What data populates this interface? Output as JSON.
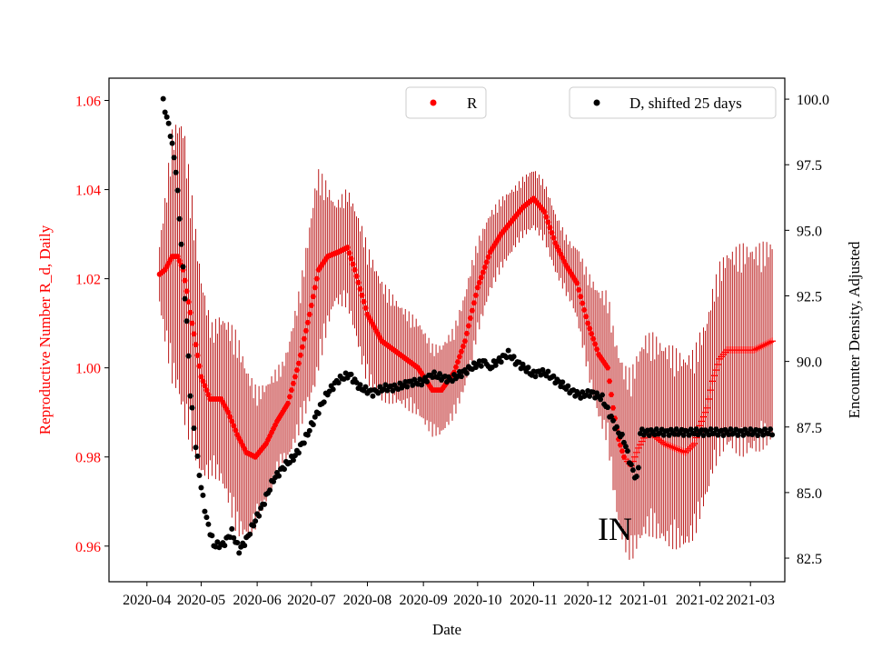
{
  "colors": {
    "r_series": "#ff0000",
    "r_errorbar": "#b30000",
    "d_series": "#000000",
    "axis": "#000000"
  },
  "chart_data": {
    "type": "scatter",
    "xlabel": "Date",
    "ylabel_left": "Reproductive Number R_d, Daily",
    "ylabel_right": "Encounter Density, Adjusted",
    "annotation": "IN",
    "x_tick_labels": [
      "2020-04",
      "2020-05",
      "2020-06",
      "2020-07",
      "2020-08",
      "2020-09",
      "2020-10",
      "2020-11",
      "2020-12",
      "2021-01",
      "2021-02",
      "2021-03"
    ],
    "x_ticks_day": [
      0,
      30,
      61,
      91,
      122,
      153,
      183,
      214,
      244,
      275,
      306,
      334
    ],
    "xlim_day": [
      -21,
      353
    ],
    "ylim_left": [
      0.952,
      1.065
    ],
    "yticks_left": [
      0.96,
      0.98,
      1.0,
      1.02,
      1.04,
      1.06
    ],
    "ytick_labels_left": [
      "0.96",
      "0.98",
      "1.00",
      "1.02",
      "1.04",
      "1.06"
    ],
    "ylim_right": [
      81.6,
      100.8
    ],
    "yticks_right": [
      82.5,
      85.0,
      87.5,
      90.0,
      92.5,
      95.0,
      97.5,
      100.0
    ],
    "ytick_labels_right": [
      "82.5",
      "85.0",
      "87.5",
      "90.0",
      "92.5",
      "95.0",
      "97.5",
      "100.0"
    ],
    "legend": [
      {
        "label": "R",
        "position": "top-center"
      },
      {
        "label": "D, shifted 25 days",
        "position": "top-right"
      }
    ],
    "series_R": {
      "name": "R",
      "day_range": [
        7,
        346
      ],
      "marker_circle_until_day": 264,
      "keypoints": [
        [
          7,
          1.021
        ],
        [
          10,
          1.022
        ],
        [
          14,
          1.025
        ],
        [
          17,
          1.025
        ],
        [
          20,
          1.022
        ],
        [
          25,
          1.01
        ],
        [
          30,
          0.998
        ],
        [
          35,
          0.993
        ],
        [
          41,
          0.993
        ],
        [
          45,
          0.99
        ],
        [
          50,
          0.985
        ],
        [
          55,
          0.981
        ],
        [
          60,
          0.98
        ],
        [
          66,
          0.983
        ],
        [
          72,
          0.988
        ],
        [
          78,
          0.992
        ],
        [
          84,
          1.001
        ],
        [
          90,
          1.012
        ],
        [
          95,
          1.022
        ],
        [
          100,
          1.025
        ],
        [
          106,
          1.026
        ],
        [
          111,
          1.027
        ],
        [
          115,
          1.022
        ],
        [
          122,
          1.012
        ],
        [
          130,
          1.006
        ],
        [
          140,
          1.003
        ],
        [
          150,
          1.0
        ],
        [
          158,
          0.995
        ],
        [
          163,
          0.995
        ],
        [
          170,
          0.999
        ],
        [
          176,
          1.006
        ],
        [
          183,
          1.018
        ],
        [
          190,
          1.026
        ],
        [
          196,
          1.03
        ],
        [
          202,
          1.033
        ],
        [
          208,
          1.036
        ],
        [
          214,
          1.038
        ],
        [
          220,
          1.035
        ],
        [
          226,
          1.028
        ],
        [
          232,
          1.023
        ],
        [
          238,
          1.019
        ],
        [
          244,
          1.01
        ],
        [
          250,
          1.003
        ],
        [
          255,
          1.0
        ],
        [
          258,
          0.991
        ],
        [
          261,
          0.984
        ],
        [
          264,
          0.98
        ],
        [
          268,
          0.978
        ],
        [
          272,
          0.982
        ],
        [
          276,
          0.985
        ],
        [
          280,
          0.985
        ],
        [
          286,
          0.983
        ],
        [
          292,
          0.982
        ],
        [
          298,
          0.981
        ],
        [
          303,
          0.983
        ],
        [
          306,
          0.987
        ],
        [
          310,
          0.991
        ],
        [
          313,
          0.997
        ],
        [
          317,
          1.002
        ],
        [
          321,
          1.004
        ],
        [
          326,
          1.004
        ],
        [
          331,
          1.004
        ],
        [
          336,
          1.004
        ],
        [
          341,
          1.005
        ],
        [
          346,
          1.006
        ]
      ],
      "error_halfwidth": [
        [
          7,
          0.006
        ],
        [
          14,
          0.025
        ],
        [
          20,
          0.03
        ],
        [
          28,
          0.022
        ],
        [
          36,
          0.015
        ],
        [
          50,
          0.02
        ],
        [
          62,
          0.013
        ],
        [
          75,
          0.01
        ],
        [
          86,
          0.015
        ],
        [
          94,
          0.021
        ],
        [
          104,
          0.01
        ],
        [
          120,
          0.014
        ],
        [
          140,
          0.01
        ],
        [
          160,
          0.009
        ],
        [
          170,
          0.009
        ],
        [
          180,
          0.01
        ],
        [
          190,
          0.008
        ],
        [
          205,
          0.006
        ],
        [
          220,
          0.006
        ],
        [
          235,
          0.006
        ],
        [
          250,
          0.013
        ],
        [
          262,
          0.018
        ],
        [
          275,
          0.02
        ],
        [
          290,
          0.02
        ],
        [
          310,
          0.018
        ],
        [
          330,
          0.021
        ],
        [
          346,
          0.02
        ]
      ]
    },
    "series_D": {
      "name": "D, shifted 25 days",
      "segments": [
        {
          "day_range": [
            9,
            188
          ],
          "keypoints": [
            [
              9,
              99.9
            ],
            [
              13,
              98.7
            ],
            [
              16,
              97.3
            ],
            [
              18,
              95.5
            ],
            [
              20,
              93.5
            ],
            [
              22,
              91.5
            ],
            [
              24,
              88.8
            ],
            [
              27,
              86.8
            ],
            [
              30,
              85.2
            ],
            [
              33,
              84.0
            ],
            [
              37,
              83.0
            ],
            [
              42,
              83.0
            ],
            [
              47,
              83.5
            ],
            [
              51,
              82.8
            ],
            [
              55,
              83.2
            ],
            [
              59,
              83.8
            ],
            [
              64,
              84.5
            ],
            [
              70,
              85.5
            ],
            [
              76,
              86.0
            ],
            [
              82,
              86.4
            ],
            [
              88,
              87.1
            ],
            [
              94,
              88.0
            ],
            [
              100,
              88.8
            ],
            [
              106,
              89.3
            ],
            [
              112,
              89.5
            ],
            [
              118,
              89.0
            ],
            [
              125,
              88.8
            ],
            [
              132,
              89.0
            ],
            [
              138,
              89.0
            ],
            [
              146,
              89.2
            ],
            [
              152,
              89.2
            ],
            [
              158,
              89.5
            ],
            [
              163,
              89.4
            ],
            [
              168,
              89.3
            ],
            [
              173,
              89.5
            ],
            [
              178,
              89.7
            ],
            [
              183,
              89.9
            ],
            [
              188,
              90.0
            ]
          ]
        },
        {
          "day_range": [
            189,
            212
          ],
          "keypoints": [
            [
              189,
              89.7
            ],
            [
              192,
              89.9
            ],
            [
              196,
              90.1
            ],
            [
              200,
              90.3
            ],
            [
              204,
              90.0
            ],
            [
              208,
              89.8
            ],
            [
              212,
              89.6
            ]
          ]
        },
        {
          "day_range": [
            213,
            272
          ],
          "keypoints": [
            [
              213,
              89.5
            ],
            [
              218,
              89.6
            ],
            [
              222,
              89.5
            ],
            [
              228,
              89.2
            ],
            [
              234,
              88.9
            ],
            [
              240,
              88.7
            ],
            [
              246,
              88.8
            ],
            [
              252,
              88.6
            ],
            [
              256,
              88.0
            ],
            [
              260,
              87.4
            ],
            [
              264,
              87.0
            ],
            [
              268,
              86.0
            ],
            [
              271,
              85.5
            ],
            [
              272,
              86.0
            ]
          ]
        },
        {
          "day_range": [
            273,
            346
          ],
          "keypoints": [
            [
              273,
              87.3
            ],
            [
              346,
              87.3
            ]
          ]
        }
      ]
    }
  }
}
